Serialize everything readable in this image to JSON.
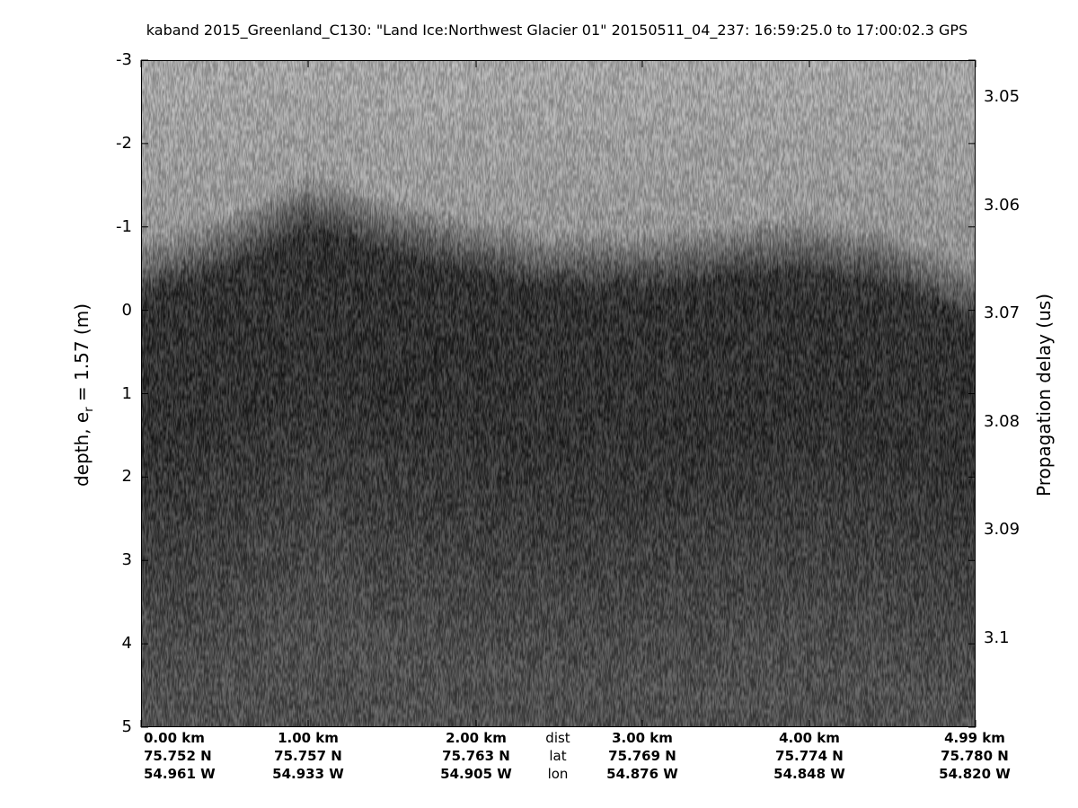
{
  "chart_data": {
    "type": "heatmap",
    "title": "kaband 2015_Greenland_C130: \"Land Ice:Northwest Glacier 01\"  20150511_04_237: 16:59:25.0 to 17:00:02.3 GPS",
    "ylabel_left": "depth, e",
    "ylabel_left_sub": "r",
    "ylabel_left_rest": " = 1.57 (m)",
    "ylabel_right": "Propagation delay (us)",
    "ylim_left": [
      -3,
      5
    ],
    "yticks_left": [
      "-3",
      "-2",
      "-1",
      "0",
      "1",
      "2",
      "3",
      "4",
      "5"
    ],
    "yticks_right": [
      "3.05",
      "3.06",
      "3.07",
      "3.08",
      "3.09",
      "3.1"
    ],
    "yticks_right_values": [
      3.05,
      3.06,
      3.07,
      3.08,
      3.09,
      3.1
    ],
    "colormap": "gray",
    "x_labels": {
      "row_names": [
        "dist",
        "lat",
        "lon"
      ],
      "dist": [
        "0.00 km",
        "1.00 km",
        "2.00 km",
        "3.00 km",
        "4.00 km",
        "4.99 km"
      ],
      "lat": [
        "75.752 N",
        "75.757 N",
        "75.763 N",
        "75.769 N",
        "75.774 N",
        "75.780 N"
      ],
      "lon": [
        "54.961 W",
        "54.933 W",
        "54.905 W",
        "54.876 W",
        "54.848 W",
        "54.820 W"
      ]
    },
    "surface_depth_km": [
      0,
      0.5,
      1.0,
      1.5,
      2.0,
      2.5,
      3.0,
      3.5,
      4.0,
      4.5,
      4.99
    ],
    "surface_depth_m": [
      -0.2,
      -0.5,
      -1.0,
      -0.7,
      -0.45,
      -0.3,
      -0.3,
      -0.4,
      -0.5,
      -0.3,
      0.1
    ]
  }
}
